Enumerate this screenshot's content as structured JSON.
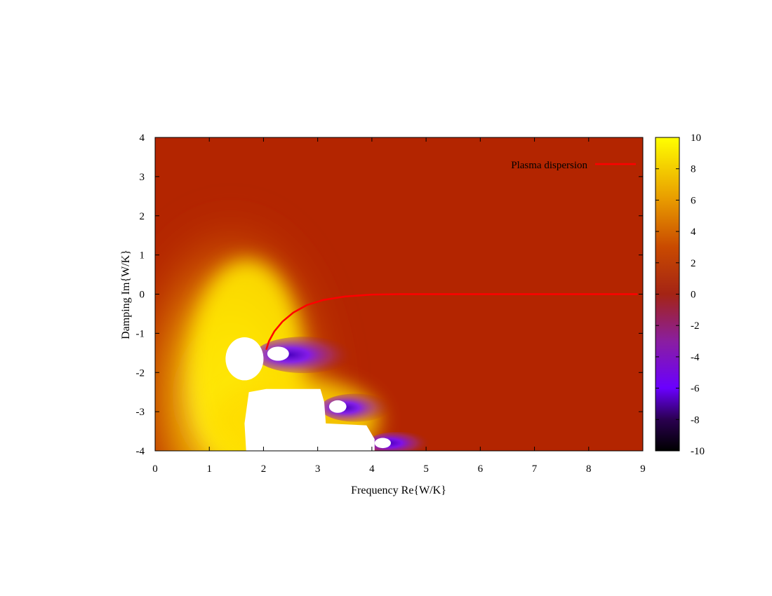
{
  "chart_data": {
    "type": "heatmap",
    "xlabel": "Frequency Re{W/K}",
    "ylabel": "Damping Im{W/K}",
    "xlim": [
      0,
      9
    ],
    "ylim": [
      -4,
      4
    ],
    "x_ticks": [
      "0",
      "1",
      "2",
      "3",
      "4",
      "5",
      "6",
      "7",
      "8",
      "9"
    ],
    "y_ticks": [
      "4",
      "3",
      "2",
      "1",
      "0",
      "-1",
      "-2",
      "-3",
      "-4"
    ],
    "colorbar": {
      "range": [
        -10,
        10
      ],
      "ticks": [
        "10",
        "8",
        "6",
        "4",
        "2",
        "0",
        "-2",
        "-4",
        "-6",
        "-8",
        "-10"
      ],
      "stops": [
        {
          "value": 10,
          "color": "#ffff00"
        },
        {
          "value": 6,
          "color": "#e89a00"
        },
        {
          "value": 3,
          "color": "#c94a00"
        },
        {
          "value": 0,
          "color": "#a42414"
        },
        {
          "value": -3,
          "color": "#8a1ea0"
        },
        {
          "value": -6,
          "color": "#6a00ff"
        },
        {
          "value": -8,
          "color": "#2a0050"
        },
        {
          "value": -10,
          "color": "#000000"
        }
      ]
    },
    "background_color": "#b32500",
    "legend": {
      "placement": "top-right",
      "entries": [
        {
          "label": "Plasma dispersion",
          "color": "#ff0000"
        }
      ]
    },
    "series": [
      {
        "name": "Plasma dispersion",
        "color": "#ff0000",
        "x": [
          2.05,
          2.1,
          2.2,
          2.35,
          2.55,
          2.8,
          3.1,
          3.5,
          4.0,
          4.5,
          5.0,
          6.0,
          7.0,
          8.0,
          8.9
        ],
        "y": [
          -1.42,
          -1.2,
          -0.95,
          -0.7,
          -0.47,
          -0.28,
          -0.15,
          -0.06,
          -0.01,
          0,
          0,
          0,
          0,
          0,
          0
        ]
      }
    ],
    "white_regions": [
      {
        "name": "pole-1",
        "cx": 1.65,
        "cy": -1.65,
        "rx": 0.35,
        "ry": 0.55
      },
      {
        "name": "pole-2",
        "cx": 2.27,
        "cy": -1.52,
        "rx": 0.2,
        "ry": 0.18
      },
      {
        "name": "pole-3",
        "cx": 3.37,
        "cy": -2.87,
        "rx": 0.16,
        "ry": 0.16
      },
      {
        "name": "pole-4",
        "cx": 4.2,
        "cy": -3.8,
        "rx": 0.15,
        "ry": 0.13
      }
    ],
    "saturated_regions": [
      {
        "name": "white-block-main",
        "points": [
          [
            1.68,
            -4
          ],
          [
            1.65,
            -3.3
          ],
          [
            1.73,
            -2.5
          ],
          [
            2.05,
            -2.42
          ],
          [
            3.05,
            -2.42
          ],
          [
            3.12,
            -2.75
          ],
          [
            3.15,
            -3.3
          ],
          [
            3.9,
            -3.35
          ],
          [
            4.05,
            -3.7
          ],
          [
            4.05,
            -4
          ]
        ]
      }
    ]
  }
}
